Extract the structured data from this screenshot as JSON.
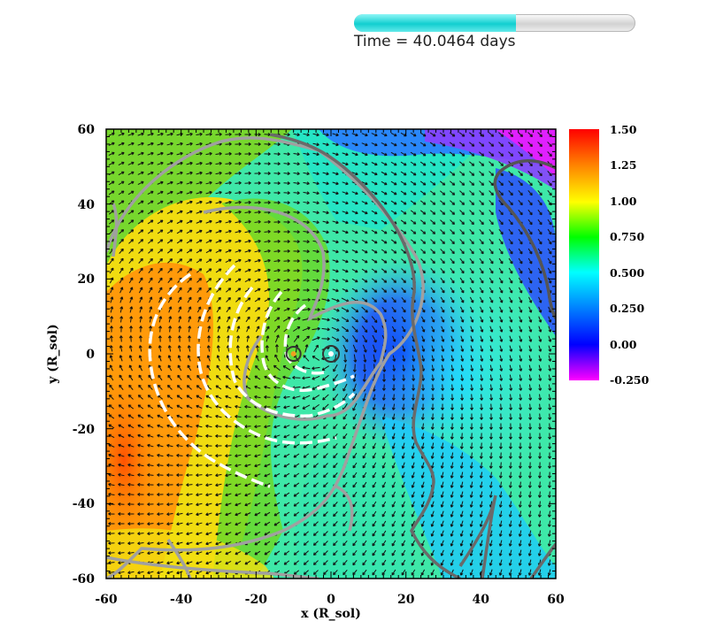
{
  "time_label": "Time = 40.0464 days",
  "progress": {
    "fraction": 0.575,
    "fill_color": "#18d2d2"
  },
  "chart_data": {
    "type": "heatmap",
    "title": "",
    "xlabel": "x (R_sol)",
    "ylabel": "y (R_sol)",
    "xlim": [
      -60,
      60
    ],
    "ylim": [
      -60,
      60
    ],
    "x_ticks": [
      "-60",
      "-40",
      "-20",
      "0",
      "20",
      "40",
      "60"
    ],
    "y_ticks": [
      "60",
      "40",
      "20",
      "0",
      "-20",
      "-40",
      "-60"
    ],
    "colorbar": {
      "range": [
        -0.25,
        1.5
      ],
      "labels": [
        "1.50",
        "1.25",
        "1.00",
        "0.750",
        "0.500",
        "0.250",
        "0.00",
        "-0.250"
      ],
      "colors": [
        "#ff00ff",
        "#0000ff",
        "#00ffff",
        "#00ff00",
        "#ffff00",
        "#ff8000",
        "#ff0000"
      ]
    },
    "overlays": [
      "velocity-vectors",
      "white-dashed-contours",
      "gray-contours",
      "dark-gray-contour"
    ],
    "markers": [
      {
        "x": -10,
        "y": 0,
        "color": "#f0a020"
      },
      {
        "x": 0,
        "y": 0,
        "color": "#ffffff"
      }
    ]
  }
}
